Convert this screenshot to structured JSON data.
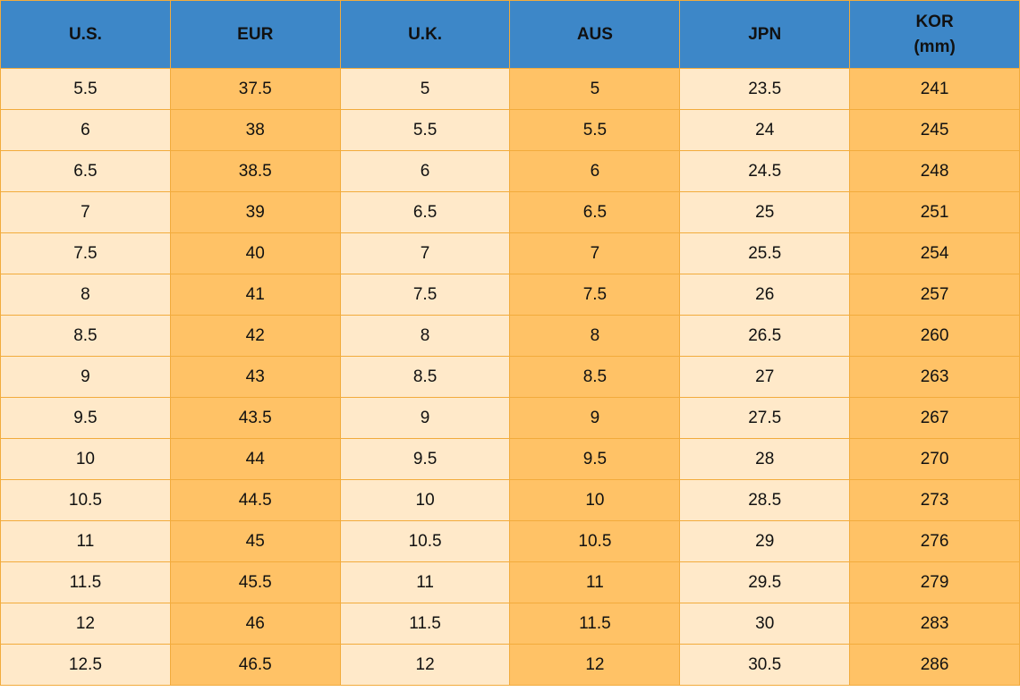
{
  "table": {
    "headers": [
      "U.S.",
      "EUR",
      "U.K.",
      "AUS",
      "JPN",
      "KOR\n(mm)"
    ],
    "rows": [
      [
        "5.5",
        "37.5",
        "5",
        "5",
        "23.5",
        "241"
      ],
      [
        "6",
        "38",
        "5.5",
        "5.5",
        "24",
        "245"
      ],
      [
        "6.5",
        "38.5",
        "6",
        "6",
        "24.5",
        "248"
      ],
      [
        "7",
        "39",
        "6.5",
        "6.5",
        "25",
        "251"
      ],
      [
        "7.5",
        "40",
        "7",
        "7",
        "25.5",
        "254"
      ],
      [
        "8",
        "41",
        "7.5",
        "7.5",
        "26",
        "257"
      ],
      [
        "8.5",
        "42",
        "8",
        "8",
        "26.5",
        "260"
      ],
      [
        "9",
        "43",
        "8.5",
        "8.5",
        "27",
        "263"
      ],
      [
        "9.5",
        "43.5",
        "9",
        "9",
        "27.5",
        "267"
      ],
      [
        "10",
        "44",
        "9.5",
        "9.5",
        "28",
        "270"
      ],
      [
        "10.5",
        "44.5",
        "10",
        "10",
        "28.5",
        "273"
      ],
      [
        "11",
        "45",
        "10.5",
        "10.5",
        "29",
        "276"
      ],
      [
        "11.5",
        "45.5",
        "11",
        "11",
        "29.5",
        "279"
      ],
      [
        "12",
        "46",
        "11.5",
        "11.5",
        "30",
        "283"
      ],
      [
        "12.5",
        "46.5",
        "12",
        "12",
        "30.5",
        "286"
      ]
    ]
  }
}
